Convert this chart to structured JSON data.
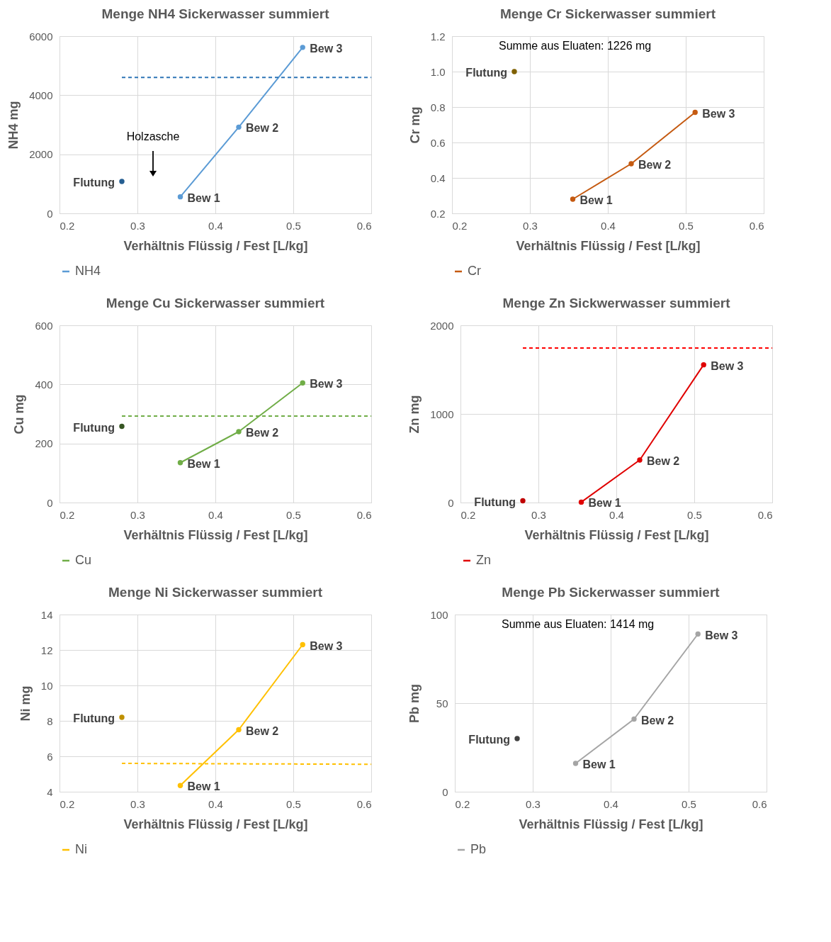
{
  "chart_data": [
    {
      "type": "line",
      "title": "Menge NH4 Sickerwasser summiert",
      "xlabel": "Verhältnis Flüssig / Fest [L/kg]",
      "ylabel": "NH4 mg",
      "xlim": [
        0.2,
        0.6
      ],
      "xticks": [
        0.2,
        0.3,
        0.4,
        0.5,
        0.6
      ],
      "ylim": [
        0,
        6000
      ],
      "yticks": [
        0,
        2000,
        4000,
        6000
      ],
      "grid": true,
      "legend": "bottom",
      "marker": "circle",
      "series": [
        {
          "name": "NH4",
          "color": "#5b9bd5",
          "x": [
            0.355,
            0.43,
            0.512
          ],
          "values": [
            560,
            2920,
            5620
          ]
        },
        {
          "type": "scatter",
          "color": "#255e91",
          "x": [
            0.28
          ],
          "values": [
            1080
          ]
        },
        {
          "type": "line",
          "color": "#2e75b6",
          "line_style": "dashed",
          "marker": "none",
          "x": [
            0.28,
            0.6
          ],
          "values": [
            4600,
            4600
          ]
        }
      ],
      "annotations": [
        {
          "text": "Bew 1",
          "x": 0.355,
          "y": 560
        },
        {
          "text": "Bew 2",
          "x": 0.43,
          "y": 2920
        },
        {
          "text": "Bew 3",
          "x": 0.512,
          "y": 5620
        },
        {
          "text": "Flutung",
          "x": 0.28,
          "y": 1080
        },
        "Holzasche"
      ]
    },
    {
      "type": "line",
      "title": "Menge Cr Sickerwasser summiert",
      "xlabel": "Verhältnis Flüssig / Fest [L/kg]",
      "ylabel": "Cr mg",
      "xlim": [
        0.2,
        0.6
      ],
      "xticks": [
        0.2,
        0.3,
        0.4,
        0.5,
        0.6
      ],
      "ylim": [
        0.2,
        1.2
      ],
      "yticks": [
        0.2,
        0.4,
        0.6,
        0.8,
        {
          "value": 1,
          "label": "1.0"
        },
        1.2
      ],
      "grid": true,
      "legend": "bottom",
      "marker": "circle",
      "series": [
        {
          "name": "Cr",
          "color": "#c55a11",
          "x": [
            0.355,
            0.43,
            0.512
          ],
          "values": [
            0.28,
            0.48,
            0.77
          ]
        },
        {
          "type": "scatter",
          "color": "#7f6000",
          "x": [
            0.28
          ],
          "values": [
            1.0
          ]
        }
      ],
      "annotations": [
        {
          "text": "Bew 1",
          "x": 0.355,
          "y": 0.28
        },
        {
          "text": "Bew 2",
          "x": 0.43,
          "y": 0.48
        },
        {
          "text": "Bew 3",
          "x": 0.512,
          "y": 0.77
        },
        {
          "text": "Flutung",
          "x": 0.28,
          "y": 1.0
        },
        "Summe aus Eluaten: 1226 mg"
      ]
    },
    {
      "type": "line",
      "title": "Menge Cu Sickerwasser summiert",
      "xlabel": "Verhältnis Flüssig / Fest [L/kg]",
      "ylabel": "Cu mg",
      "xlim": [
        0.2,
        0.6
      ],
      "xticks": [
        0.2,
        0.3,
        0.4,
        0.5,
        0.6
      ],
      "ylim": [
        0,
        600
      ],
      "yticks": [
        0,
        200,
        400,
        600
      ],
      "grid": true,
      "legend": "bottom",
      "marker": "circle",
      "series": [
        {
          "name": "Cu",
          "color": "#70ad47",
          "x": [
            0.355,
            0.43,
            0.512
          ],
          "values": [
            135,
            240,
            405
          ]
        },
        {
          "type": "scatter",
          "color": "#375623",
          "x": [
            0.28
          ],
          "values": [
            258
          ]
        },
        {
          "type": "line",
          "color": "#70ad47",
          "line_style": "dashed",
          "marker": "none",
          "x": [
            0.28,
            0.6
          ],
          "values": [
            293,
            293
          ]
        }
      ],
      "annotations": [
        {
          "text": "Bew 1",
          "x": 0.355,
          "y": 135
        },
        {
          "text": "Bew 2",
          "x": 0.43,
          "y": 240
        },
        {
          "text": "Bew 3",
          "x": 0.512,
          "y": 405
        },
        {
          "text": "Flutung",
          "x": 0.28,
          "y": 258
        }
      ]
    },
    {
      "type": "line",
      "title": "Menge Zn Sickwerwasser summiert",
      "xlabel": "Verhältnis Flüssig / Fest [L/kg]",
      "ylabel": "Zn mg",
      "xlim": [
        0.2,
        0.6
      ],
      "xticks": [
        0.2,
        0.3,
        0.4,
        0.5,
        0.6
      ],
      "ylim": [
        0,
        2000
      ],
      "yticks": [
        0,
        1000,
        2000
      ],
      "grid": true,
      "legend": "bottom",
      "marker": "circle",
      "series": [
        {
          "name": "Zn",
          "color": "#e00000",
          "x": [
            0.355,
            0.43,
            0.512
          ],
          "values": [
            5,
            480,
            1555
          ]
        },
        {
          "type": "scatter",
          "color": "#c00000",
          "x": [
            0.28
          ],
          "values": [
            20
          ]
        },
        {
          "type": "line",
          "color": "#ff0000",
          "line_style": "dashed",
          "marker": "none",
          "x": [
            0.28,
            0.6
          ],
          "values": [
            1745,
            1745
          ]
        }
      ],
      "annotations": [
        {
          "text": "Bew 1",
          "x": 0.355,
          "y": 5
        },
        {
          "text": "Bew 2",
          "x": 0.43,
          "y": 480
        },
        {
          "text": "Bew 3",
          "x": 0.512,
          "y": 1555
        },
        {
          "text": "Flutung",
          "x": 0.28,
          "y": 20
        }
      ]
    },
    {
      "type": "line",
      "title": "Menge Ni Sickerwasser summiert",
      "xlabel": "Verhältnis Flüssig / Fest [L/kg]",
      "ylabel": "Ni mg",
      "xlim": [
        0.2,
        0.6
      ],
      "xticks": [
        0.2,
        0.3,
        0.4,
        0.5,
        0.6
      ],
      "ylim": [
        4,
        14
      ],
      "yticks": [
        4,
        6,
        8,
        10,
        12,
        14
      ],
      "grid": true,
      "legend": "bottom",
      "marker": "circle",
      "series": [
        {
          "name": "Ni",
          "color": "#ffc000",
          "x": [
            0.355,
            0.43,
            0.512
          ],
          "values": [
            4.35,
            7.5,
            12.3
          ]
        },
        {
          "type": "scatter",
          "color": "#bf9000",
          "x": [
            0.28
          ],
          "values": [
            8.2
          ]
        },
        {
          "type": "line",
          "color": "#ffc000",
          "line_style": "dashed",
          "marker": "none",
          "x": [
            0.28,
            0.6
          ],
          "values": [
            5.6,
            5.55
          ]
        }
      ],
      "annotations": [
        {
          "text": "Bew 1",
          "x": 0.355,
          "y": 4.35
        },
        {
          "text": "Bew 2",
          "x": 0.43,
          "y": 7.5
        },
        {
          "text": "Bew 3",
          "x": 0.512,
          "y": 12.3
        },
        {
          "text": "Flutung",
          "x": 0.28,
          "y": 8.2
        }
      ]
    },
    {
      "type": "line",
      "title": "Menge Pb Sickerwasser summiert",
      "xlabel": "Verhältnis Flüssig / Fest [L/kg]",
      "ylabel": "Pb mg",
      "xlim": [
        0.2,
        0.6
      ],
      "xticks": [
        0.2,
        0.3,
        0.4,
        0.5,
        0.6
      ],
      "ylim": [
        0,
        100
      ],
      "yticks": [
        0,
        50,
        100
      ],
      "grid": true,
      "legend": "bottom",
      "marker": "circle",
      "series": [
        {
          "name": "Pb",
          "color": "#a5a5a5",
          "x": [
            0.355,
            0.43,
            0.512
          ],
          "values": [
            16,
            41,
            89
          ]
        },
        {
          "type": "scatter",
          "color": "#404040",
          "x": [
            0.28
          ],
          "values": [
            30
          ]
        }
      ],
      "annotations": [
        {
          "text": "Bew 1",
          "x": 0.355,
          "y": 16
        },
        {
          "text": "Bew 2",
          "x": 0.43,
          "y": 41
        },
        {
          "text": "Bew 3",
          "x": 0.512,
          "y": 89
        },
        {
          "text": "Flutung",
          "x": 0.28,
          "y": 30
        },
        "Summe aus Eluaten: 1414 mg"
      ]
    }
  ]
}
